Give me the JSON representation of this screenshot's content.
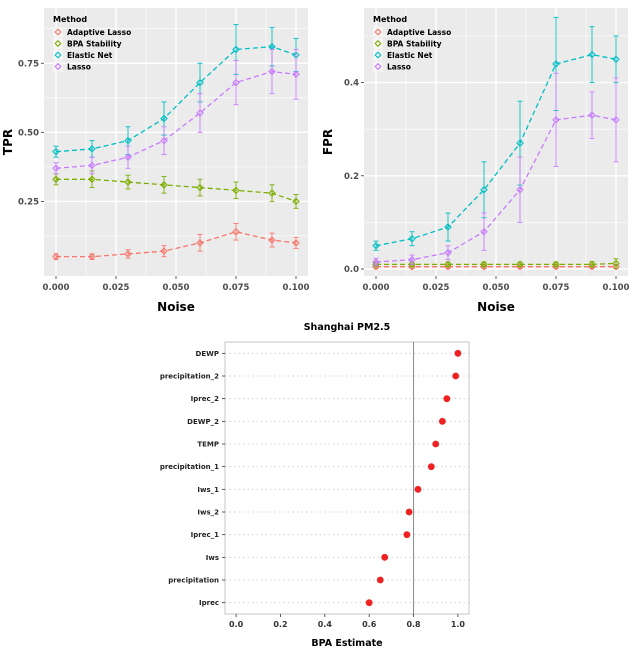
{
  "figure": {
    "background": "#FFFFFF",
    "panel_background": "#EBEBEB",
    "gridline_color": "#FFFFFF"
  },
  "chart_data": [
    {
      "id": "tpr",
      "type": "line",
      "title": "",
      "xlabel": "Noise",
      "ylabel": "TPR",
      "legend_title": "Method",
      "legend_position": "top-left-inside",
      "grid": true,
      "x": [
        0.0,
        0.015,
        0.03,
        0.045,
        0.06,
        0.075,
        0.09,
        0.1
      ],
      "xlim": [
        -0.005,
        0.105
      ],
      "ylim": [
        -0.02,
        0.95
      ],
      "xticks": [
        0.0,
        0.025,
        0.05,
        0.075,
        0.1
      ],
      "xtick_labels": [
        "0.000",
        "0.025",
        "0.050",
        "0.075",
        "0.100"
      ],
      "yticks": [
        0.25,
        0.5,
        0.75
      ],
      "ytick_labels": [
        "0.25",
        "0.50",
        "0.75"
      ],
      "series": [
        {
          "name": "Adaptive Lasso",
          "color": "#F8766D",
          "values": [
            0.05,
            0.05,
            0.06,
            0.07,
            0.1,
            0.14,
            0.11,
            0.1
          ],
          "errors": [
            0.01,
            0.01,
            0.015,
            0.02,
            0.03,
            0.03,
            0.025,
            0.02
          ]
        },
        {
          "name": "BPA Stability",
          "color": "#7CAE00",
          "values": [
            0.33,
            0.33,
            0.32,
            0.31,
            0.3,
            0.29,
            0.28,
            0.25
          ],
          "errors": [
            0.02,
            0.03,
            0.025,
            0.03,
            0.03,
            0.03,
            0.03,
            0.025
          ]
        },
        {
          "name": "Elastic Net",
          "color": "#00BFC4",
          "values": [
            0.43,
            0.44,
            0.47,
            0.55,
            0.68,
            0.8,
            0.81,
            0.78
          ],
          "errors": [
            0.02,
            0.03,
            0.05,
            0.06,
            0.07,
            0.09,
            0.07,
            0.06
          ]
        },
        {
          "name": "Lasso",
          "color": "#C77CFF",
          "values": [
            0.37,
            0.38,
            0.41,
            0.47,
            0.57,
            0.68,
            0.72,
            0.71
          ],
          "errors": [
            0.02,
            0.03,
            0.04,
            0.05,
            0.07,
            0.08,
            0.08,
            0.09
          ]
        }
      ]
    },
    {
      "id": "fpr",
      "type": "line",
      "title": "",
      "xlabel": "Noise",
      "ylabel": "FPR",
      "legend_title": "Method",
      "legend_position": "top-left-inside",
      "grid": true,
      "x": [
        0.0,
        0.015,
        0.03,
        0.045,
        0.06,
        0.075,
        0.09,
        0.1
      ],
      "xlim": [
        -0.005,
        0.105
      ],
      "ylim": [
        -0.015,
        0.56
      ],
      "xticks": [
        0.0,
        0.025,
        0.05,
        0.075,
        0.1
      ],
      "xtick_labels": [
        "0.000",
        "0.025",
        "0.050",
        "0.075",
        "0.100"
      ],
      "yticks": [
        0.0,
        0.2,
        0.4
      ],
      "ytick_labels": [
        "0.0",
        "0.2",
        "0.4"
      ],
      "series": [
        {
          "name": "Adaptive Lasso",
          "color": "#F8766D",
          "values": [
            0.005,
            0.005,
            0.005,
            0.005,
            0.005,
            0.005,
            0.005,
            0.005
          ],
          "errors": [
            0.004,
            0.004,
            0.004,
            0.004,
            0.004,
            0.004,
            0.004,
            0.004
          ]
        },
        {
          "name": "BPA Stability",
          "color": "#7CAE00",
          "values": [
            0.01,
            0.01,
            0.01,
            0.01,
            0.01,
            0.01,
            0.01,
            0.012
          ],
          "errors": [
            0.005,
            0.005,
            0.005,
            0.005,
            0.005,
            0.005,
            0.006,
            0.01
          ]
        },
        {
          "name": "Elastic Net",
          "color": "#00BFC4",
          "values": [
            0.05,
            0.065,
            0.09,
            0.17,
            0.27,
            0.44,
            0.46,
            0.45
          ],
          "errors": [
            0.01,
            0.015,
            0.03,
            0.06,
            0.09,
            0.1,
            0.06,
            0.05
          ]
        },
        {
          "name": "Lasso",
          "color": "#C77CFF",
          "values": [
            0.015,
            0.02,
            0.035,
            0.08,
            0.17,
            0.32,
            0.33,
            0.32
          ],
          "errors": [
            0.008,
            0.01,
            0.015,
            0.04,
            0.07,
            0.1,
            0.05,
            0.09
          ]
        }
      ]
    },
    {
      "id": "bpa",
      "type": "dot",
      "title": "Shanghai PM2.5",
      "xlabel": "BPA Estimate",
      "categories": [
        "DEWP",
        "precipitation_2",
        "Iprec_2",
        "DEWP_2",
        "TEMP",
        "precipitation_1",
        "Iws_1",
        "Iws_2",
        "Iprec_1",
        "Iws",
        "precipitation",
        "Iprec"
      ],
      "values": [
        1.0,
        0.99,
        0.95,
        0.93,
        0.9,
        0.88,
        0.82,
        0.78,
        0.77,
        0.67,
        0.65,
        0.6
      ],
      "xlim": [
        -0.05,
        1.05
      ],
      "xticks": [
        0.0,
        0.2,
        0.4,
        0.6,
        0.8,
        1.0
      ],
      "xtick_labels": [
        "0.0",
        "0.2",
        "0.4",
        "0.6",
        "0.8",
        "1.0"
      ],
      "refline_x": 0.8,
      "dot_color": "#EE2222",
      "grid": true
    }
  ]
}
